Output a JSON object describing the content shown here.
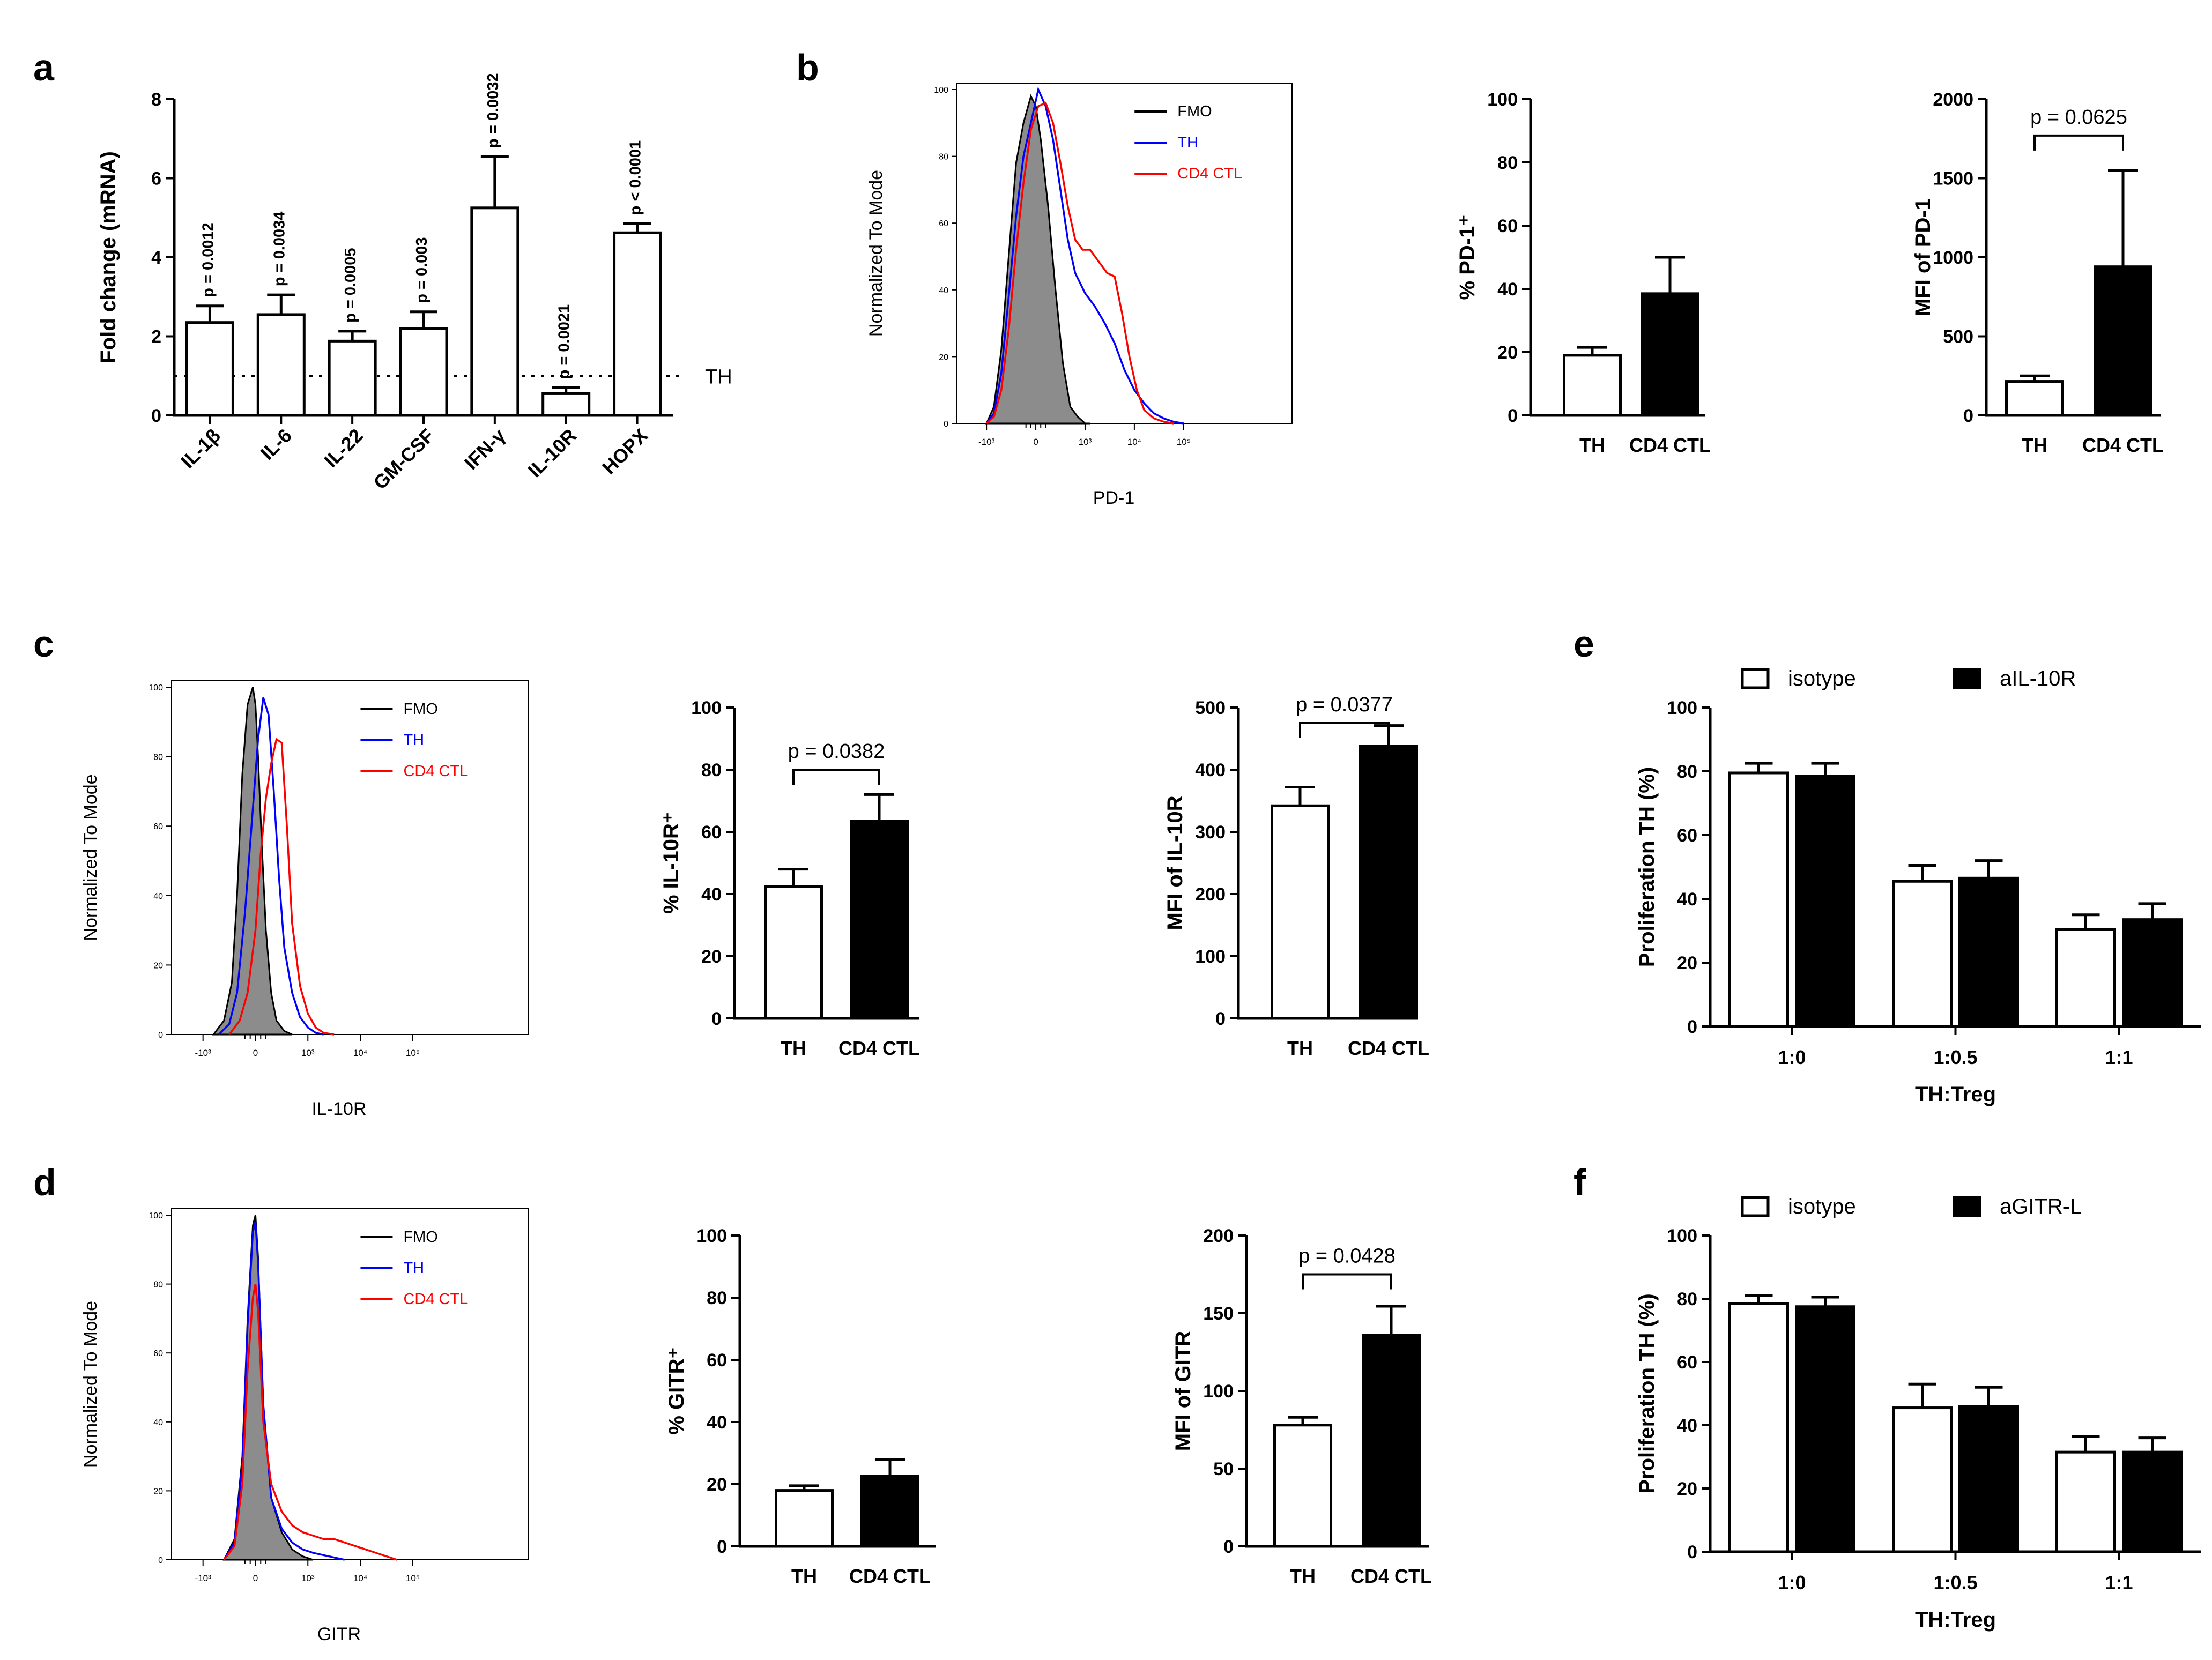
{
  "chart_data": [
    {
      "id": "a",
      "panel_label": "a",
      "type": "bar",
      "categories": [
        "IL-1β",
        "IL-6",
        "IL-22",
        "GM-CSF",
        "IFN-γ",
        "IL-10R",
        "HOPX"
      ],
      "values": [
        2.35,
        2.55,
        1.88,
        2.2,
        5.25,
        0.55,
        4.62
      ],
      "errors": [
        0.42,
        0.5,
        0.25,
        0.42,
        1.3,
        0.15,
        0.23
      ],
      "fill": [
        "#ffffff",
        "#ffffff",
        "#ffffff",
        "#ffffff",
        "#ffffff",
        "#ffffff",
        "#ffffff"
      ],
      "annotations": [
        "p = 0.0012",
        "p = 0.0034",
        "p = 0.0005",
        "p = 0.003",
        "p = 0.0032",
        "p = 0.0021",
        "p < 0.0001"
      ],
      "reference_line": {
        "y": 1,
        "label": "TH"
      },
      "ylabel": "Fold change (mRNA)",
      "xlabel": "",
      "ylim": [
        0,
        8
      ],
      "yticks": [
        "0",
        "2",
        "4",
        "6",
        "8"
      ]
    },
    {
      "id": "b_hist",
      "panel_label": "b",
      "type": "line",
      "title": "",
      "xlabel": "PD-1",
      "ylabel": "Normalized To Mode",
      "xticks": [
        "-10³",
        "0",
        "10³",
        "10⁴",
        "10⁵"
      ],
      "yticks": [
        "0",
        "20",
        "40",
        "60",
        "80",
        "100"
      ],
      "ylim": [
        0,
        100
      ],
      "xlim": [
        -1.6,
        5.2
      ],
      "series": [
        {
          "name": "FMO",
          "color": "#000000",
          "filled": true,
          "x": [
            -1.0,
            -0.85,
            -0.7,
            -0.55,
            -0.4,
            -0.25,
            -0.1,
            0.0,
            0.1,
            0.25,
            0.4,
            0.55,
            0.7,
            0.85,
            1.0,
            1.1
          ],
          "y": [
            0,
            5,
            22,
            50,
            78,
            90,
            98,
            95,
            85,
            65,
            40,
            18,
            5,
            2,
            0,
            0
          ]
        },
        {
          "name": "TH",
          "color": "#0000ff",
          "filled": false,
          "x": [
            -1.0,
            -0.85,
            -0.7,
            -0.55,
            -0.4,
            -0.25,
            -0.1,
            0.05,
            0.2,
            0.35,
            0.5,
            0.65,
            0.8,
            1.0,
            1.2,
            1.4,
            1.6,
            1.8,
            2.0,
            2.2,
            2.4,
            2.6,
            2.8,
            3.0
          ],
          "y": [
            0,
            3,
            15,
            38,
            62,
            80,
            90,
            100,
            95,
            85,
            70,
            55,
            45,
            39,
            35,
            30,
            24,
            16,
            10,
            6,
            3,
            1.5,
            0.5,
            0
          ]
        },
        {
          "name": "CD4 CTL",
          "color": "#ff0000",
          "filled": false,
          "x": [
            -1.0,
            -0.85,
            -0.7,
            -0.55,
            -0.4,
            -0.25,
            -0.1,
            0.05,
            0.2,
            0.35,
            0.5,
            0.65,
            0.8,
            0.95,
            1.1,
            1.3,
            1.45,
            1.6,
            1.75,
            1.9,
            2.05,
            2.2,
            2.4,
            2.6,
            2.8
          ],
          "y": [
            0,
            2,
            10,
            28,
            52,
            72,
            88,
            95,
            96,
            90,
            78,
            65,
            55,
            52,
            52,
            48,
            45,
            44,
            33,
            20,
            10,
            4,
            1.5,
            0.5,
            0
          ]
        }
      ]
    },
    {
      "id": "b_pct",
      "panel_label": "",
      "type": "bar",
      "categories": [
        "TH",
        "CD4 CTL"
      ],
      "values": [
        19,
        38.5
      ],
      "errors": [
        2.5,
        11.5
      ],
      "fill": [
        "#ffffff",
        "#000000"
      ],
      "ylabel": "% PD-1⁺",
      "ylim": [
        0,
        100
      ],
      "yticks": [
        "0",
        "20",
        "40",
        "60",
        "80",
        "100"
      ],
      "significance": null
    },
    {
      "id": "b_mfi",
      "panel_label": "",
      "type": "bar",
      "categories": [
        "TH",
        "CD4 CTL"
      ],
      "values": [
        215,
        940
      ],
      "errors": [
        35,
        610
      ],
      "fill": [
        "#ffffff",
        "#000000"
      ],
      "ylabel": "MFI of PD-1",
      "ylim": [
        0,
        2000
      ],
      "yticks": [
        "0",
        "500",
        "1000",
        "1500",
        "2000"
      ],
      "significance": {
        "text": "p = 0.0625",
        "y": 1770
      }
    },
    {
      "id": "c_hist",
      "panel_label": "c",
      "type": "line",
      "xlabel": "IL-10R",
      "ylabel": "Normalized To Mode",
      "xticks": [
        "-10³",
        "0",
        "10³",
        "10⁴",
        "10⁵"
      ],
      "yticks": [
        "0",
        "20",
        "40",
        "60",
        "80",
        "100"
      ],
      "ylim": [
        0,
        100
      ],
      "xlim": [
        -1.6,
        5.2
      ],
      "series": [
        {
          "name": "FMO",
          "color": "#000000",
          "filled": true,
          "x": [
            -0.8,
            -0.6,
            -0.45,
            -0.35,
            -0.25,
            -0.15,
            -0.05,
            0.0,
            0.05,
            0.12,
            0.2,
            0.3,
            0.4,
            0.55,
            0.7
          ],
          "y": [
            0,
            4,
            15,
            40,
            75,
            95,
            100,
            95,
            80,
            55,
            30,
            12,
            4,
            1,
            0
          ]
        },
        {
          "name": "TH",
          "color": "#0000ff",
          "filled": false,
          "x": [
            -0.7,
            -0.5,
            -0.35,
            -0.2,
            -0.05,
            0.05,
            0.15,
            0.25,
            0.35,
            0.45,
            0.55,
            0.7,
            0.85,
            1.0,
            1.15,
            1.3
          ],
          "y": [
            0,
            3,
            12,
            35,
            65,
            85,
            97,
            92,
            70,
            45,
            25,
            12,
            5,
            2,
            0.5,
            0
          ]
        },
        {
          "name": "CD4 CTL",
          "color": "#ff0000",
          "filled": false,
          "x": [
            -0.5,
            -0.3,
            -0.15,
            0.0,
            0.1,
            0.2,
            0.3,
            0.4,
            0.5,
            0.6,
            0.7,
            0.85,
            1.0,
            1.15,
            1.3,
            1.5
          ],
          "y": [
            0,
            4,
            12,
            30,
            52,
            68,
            78,
            85,
            84,
            60,
            32,
            14,
            6,
            2,
            0.5,
            0
          ]
        }
      ]
    },
    {
      "id": "c_pct",
      "panel_label": "",
      "type": "bar",
      "categories": [
        "TH",
        "CD4 CTL"
      ],
      "values": [
        42.5,
        63.5
      ],
      "errors": [
        5.5,
        8.5
      ],
      "fill": [
        "#ffffff",
        "#000000"
      ],
      "ylabel": "% IL-10R⁺",
      "ylim": [
        0,
        100
      ],
      "yticks": [
        "0",
        "20",
        "40",
        "60",
        "80",
        "100"
      ],
      "significance": {
        "text": "p = 0.0382",
        "y": 80
      }
    },
    {
      "id": "c_mfi",
      "panel_label": "",
      "type": "bar",
      "categories": [
        "TH",
        "CD4 CTL"
      ],
      "values": [
        342,
        438
      ],
      "errors": [
        30,
        33
      ],
      "fill": [
        "#ffffff",
        "#000000"
      ],
      "ylabel": "MFI of IL-10R",
      "ylim": [
        0,
        500
      ],
      "yticks": [
        "0",
        "100",
        "200",
        "300",
        "400",
        "500"
      ],
      "significance": {
        "text": "p = 0.0377",
        "y": 475
      }
    },
    {
      "id": "d_hist",
      "panel_label": "d",
      "type": "line",
      "xlabel": "GITR",
      "ylabel": "Normalized To Mode",
      "xticks": [
        "-10³",
        "0",
        "10³",
        "10⁴",
        "10⁵"
      ],
      "yticks": [
        "0",
        "20",
        "40",
        "60",
        "80",
        "100"
      ],
      "ylim": [
        0,
        100
      ],
      "xlim": [
        -1.6,
        5.2
      ],
      "series": [
        {
          "name": "FMO",
          "color": "#000000",
          "filled": true,
          "x": [
            -0.6,
            -0.4,
            -0.25,
            -0.15,
            -0.05,
            0.0,
            0.05,
            0.15,
            0.3,
            0.5,
            0.7,
            0.9,
            1.1
          ],
          "y": [
            0,
            6,
            30,
            70,
            97,
            100,
            88,
            45,
            18,
            8,
            3,
            1,
            0
          ]
        },
        {
          "name": "TH",
          "color": "#0000ff",
          "filled": false,
          "x": [
            -0.6,
            -0.4,
            -0.25,
            -0.15,
            -0.05,
            0.0,
            0.05,
            0.15,
            0.3,
            0.5,
            0.7,
            0.9,
            1.1,
            1.4,
            1.7
          ],
          "y": [
            0,
            5,
            28,
            68,
            95,
            98,
            86,
            45,
            18,
            9,
            5,
            3,
            2,
            1,
            0
          ]
        },
        {
          "name": "CD4 CTL",
          "color": "#ff0000",
          "filled": false,
          "x": [
            -0.6,
            -0.4,
            -0.25,
            -0.15,
            -0.05,
            0.0,
            0.05,
            0.15,
            0.3,
            0.5,
            0.7,
            0.9,
            1.1,
            1.3,
            1.5,
            1.7,
            1.9,
            2.1,
            2.4,
            2.7
          ],
          "y": [
            0,
            4,
            22,
            55,
            76,
            80,
            72,
            40,
            22,
            14,
            10,
            8,
            7,
            6,
            6,
            5,
            4,
            3,
            1.5,
            0
          ]
        }
      ]
    },
    {
      "id": "d_pct",
      "panel_label": "",
      "type": "bar",
      "categories": [
        "TH",
        "CD4 CTL"
      ],
      "values": [
        18,
        22.5
      ],
      "errors": [
        1.5,
        5.5
      ],
      "fill": [
        "#ffffff",
        "#000000"
      ],
      "ylabel": "% GITR⁺",
      "ylim": [
        0,
        100
      ],
      "yticks": [
        "0",
        "20",
        "40",
        "60",
        "80",
        "100"
      ],
      "significance": null
    },
    {
      "id": "d_mfi",
      "panel_label": "",
      "type": "bar",
      "categories": [
        "TH",
        "CD4 CTL"
      ],
      "values": [
        78,
        136
      ],
      "errors": [
        5,
        18.5
      ],
      "fill": [
        "#ffffff",
        "#000000"
      ],
      "ylabel": "MFI of GITR",
      "ylim": [
        0,
        200
      ],
      "yticks": [
        "0",
        "50",
        "100",
        "150",
        "200"
      ],
      "significance": {
        "text": "p = 0.0428",
        "y": 175
      }
    },
    {
      "id": "e",
      "panel_label": "e",
      "type": "bar",
      "categories": [
        "1:0",
        "1:0.5",
        "1:1"
      ],
      "series": [
        {
          "name": "isotype",
          "fill": "#ffffff",
          "values": [
            79.5,
            45.5,
            30.5
          ],
          "errors": [
            3,
            5,
            4.5
          ]
        },
        {
          "name": "aIL-10R",
          "fill": "#000000",
          "values": [
            78.5,
            46.5,
            33.5
          ],
          "errors": [
            4,
            5.5,
            5
          ]
        }
      ],
      "xlabel": "TH:Treg",
      "ylabel": "Proliferation TH (%)",
      "ylim": [
        0,
        100
      ],
      "yticks": [
        "0",
        "20",
        "40",
        "60",
        "80",
        "100"
      ],
      "legend_position": "top"
    },
    {
      "id": "f",
      "panel_label": "f",
      "type": "bar",
      "categories": [
        "1:0",
        "1:0.5",
        "1:1"
      ],
      "series": [
        {
          "name": "isotype",
          "fill": "#ffffff",
          "values": [
            78.5,
            45.5,
            31.5
          ],
          "errors": [
            2.5,
            7.5,
            5
          ]
        },
        {
          "name": "aGITR-L",
          "fill": "#000000",
          "values": [
            77.5,
            46,
            31.5
          ],
          "errors": [
            3,
            6,
            4.5
          ]
        }
      ],
      "xlabel": "TH:Treg",
      "ylabel": "Proliferation TH (%)",
      "ylim": [
        0,
        100
      ],
      "yticks": [
        "0",
        "20",
        "40",
        "60",
        "80",
        "100"
      ],
      "legend_position": "top"
    }
  ]
}
